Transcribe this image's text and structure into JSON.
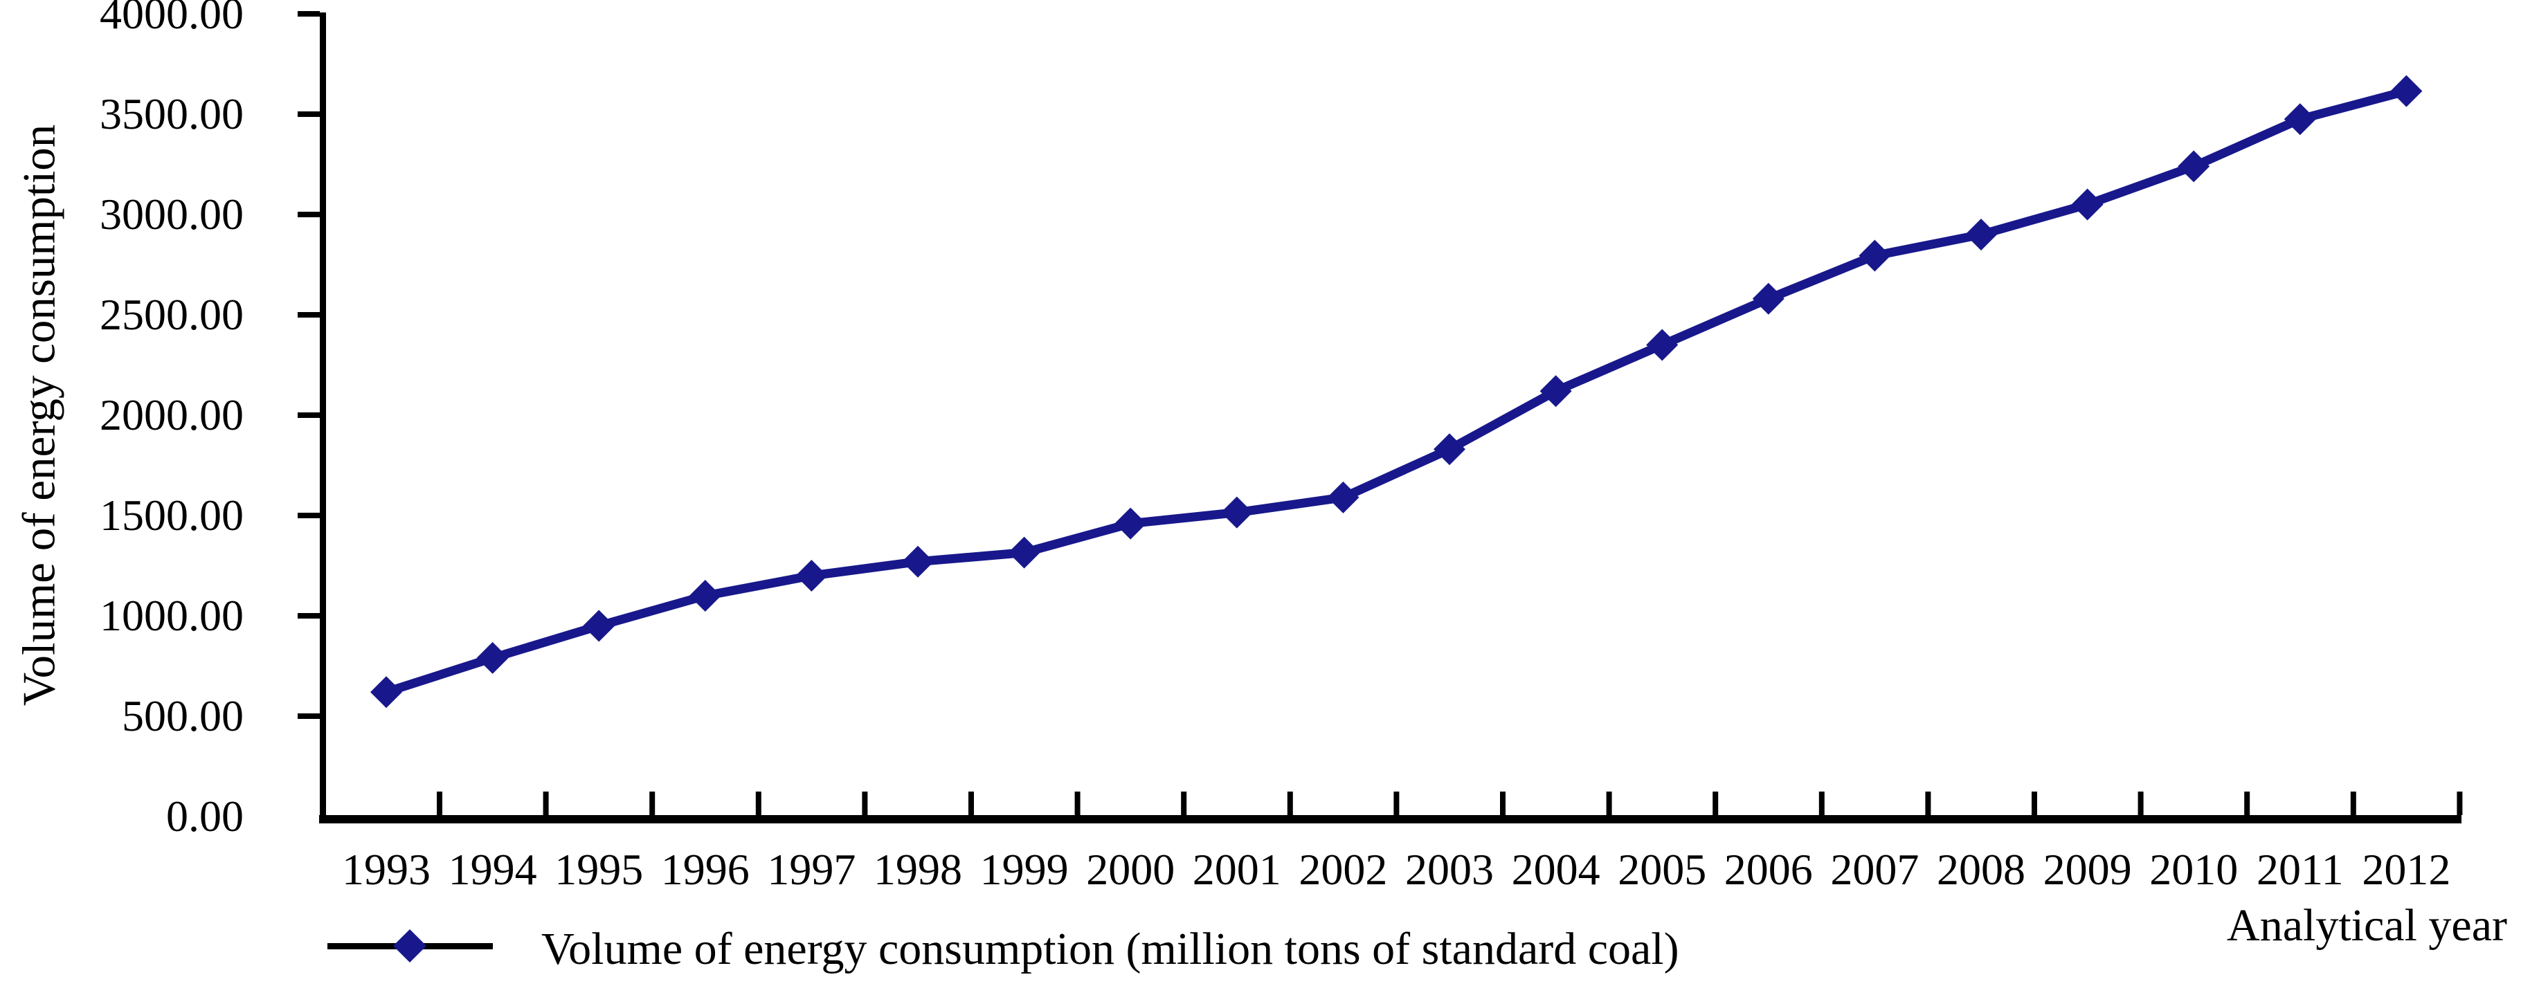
{
  "figure": {
    "background": "#ffffff",
    "axis_color": "#000000",
    "line_color": "#18188C",
    "y_axis_title": "Volume of energy consumption",
    "x_axis_title": "Analytical year",
    "legend_label": "Volume of energy consumption (million tons of standard coal)",
    "y_tick_labels": [
      "4000.00",
      "3500.00",
      "3000.00",
      "2500.00",
      "2000.00",
      "1500.00",
      "1000.00",
      "500.00",
      "0.00"
    ]
  },
  "chart_data": {
    "type": "line",
    "title": "",
    "xlabel": "Analytical year",
    "ylabel": "Volume of energy consumption",
    "categories": [
      "1993",
      "1994",
      "1995",
      "1996",
      "1997",
      "1998",
      "1999",
      "2000",
      "2001",
      "2002",
      "2003",
      "2004",
      "2005",
      "2006",
      "2007",
      "2008",
      "2009",
      "2010",
      "2011",
      "2012"
    ],
    "series": [
      {
        "name": "Volume of energy consumption (million tons of standard coal)",
        "values": [
          620,
          790,
          950,
          1100,
          1200,
          1270,
          1315,
          1460,
          1515,
          1590,
          1830,
          2120,
          2350,
          2580,
          2795,
          2900,
          3050,
          3240,
          3475,
          3615
        ]
      }
    ],
    "ylim": [
      0,
      4000
    ],
    "ytick_step": 500,
    "y_tick_format": "2-decimals",
    "grid": false,
    "marker": "diamond",
    "marker_color": "#18188C",
    "line_color": "#18188C",
    "legend_position": "bottom-left"
  }
}
